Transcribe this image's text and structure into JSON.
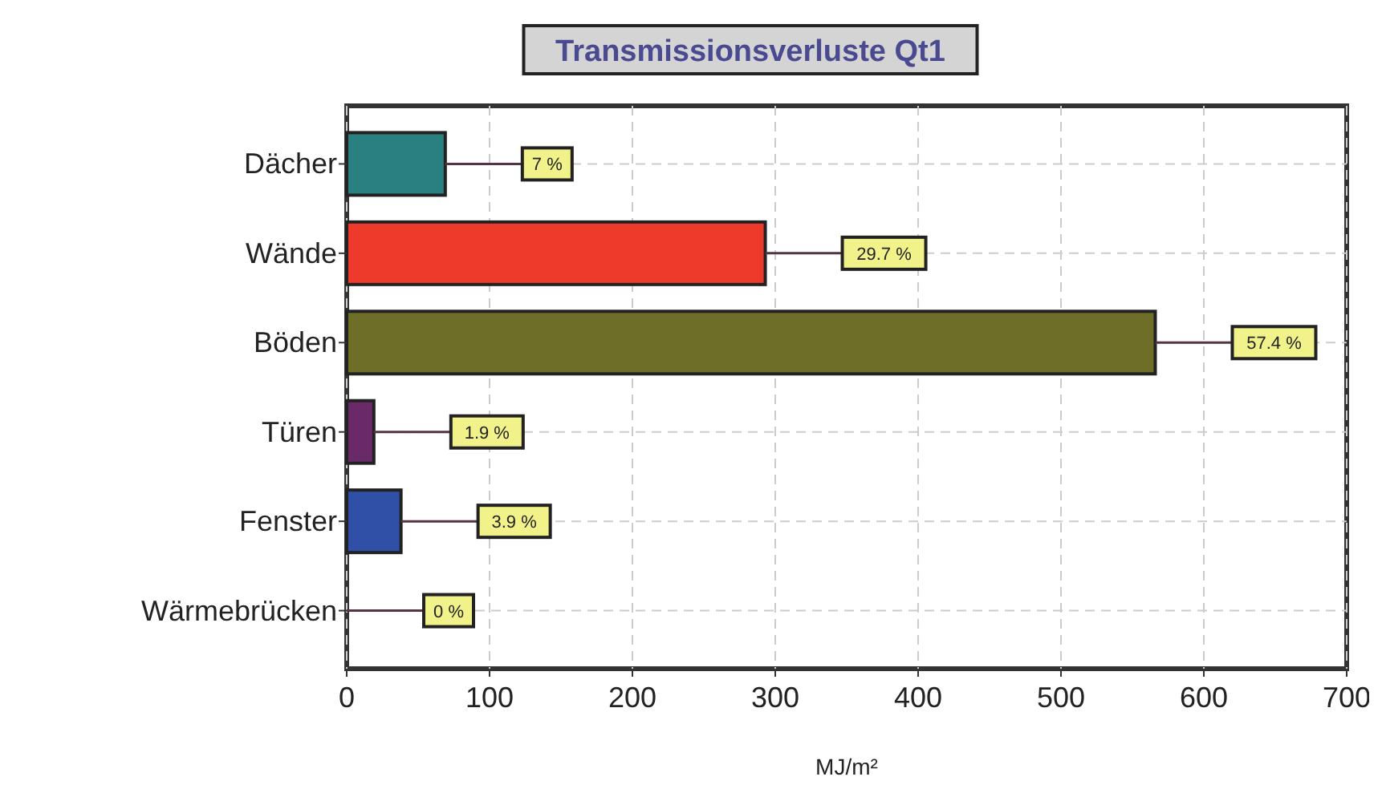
{
  "chart_data": {
    "type": "bar",
    "orientation": "horizontal",
    "title": "Transmissionsverluste Qt1",
    "xlabel": "MJ/m²",
    "categories": [
      "Dächer",
      "Wände",
      "Böden",
      "Türen",
      "Fenster",
      "Wärmebrücken"
    ],
    "values": [
      69,
      293,
      566,
      19,
      38,
      0
    ],
    "colors": [
      "#2a8080",
      "#ee3a2a",
      "#6e6e28",
      "#6a2a6a",
      "#3050a8",
      "#333333"
    ],
    "annotations": [
      {
        "text": "7 %",
        "x": 69,
        "y": "Dächer"
      },
      {
        "text": "29.7 %",
        "x": 293,
        "y": "Wände"
      },
      {
        "text": "57.4 %",
        "x": 566,
        "y": "Böden"
      },
      {
        "text": "1.9 %",
        "x": 19,
        "y": "Türen"
      },
      {
        "text": "3.9 %",
        "x": 38,
        "y": "Fenster"
      },
      {
        "text": "0 %",
        "x": 0,
        "y": "Wärmebrücken"
      }
    ],
    "xlim": [
      0,
      700
    ],
    "xticks": [
      0,
      100,
      200,
      300,
      400,
      500,
      600,
      700
    ],
    "grid": true
  }
}
